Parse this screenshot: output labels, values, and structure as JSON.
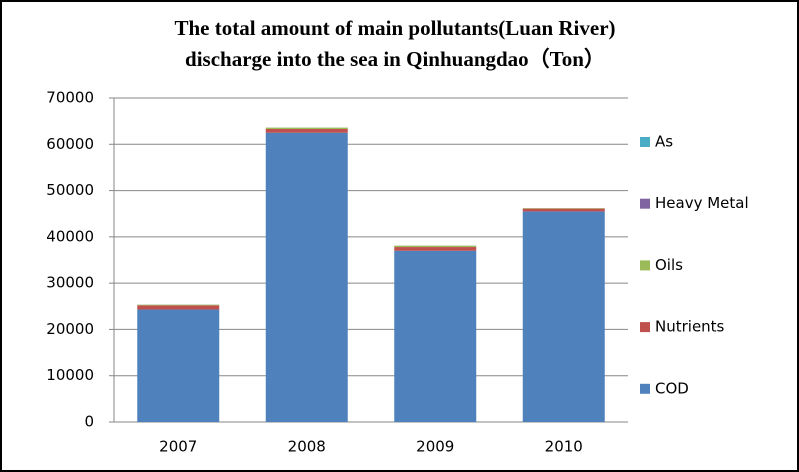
{
  "chart_data": {
    "type": "stacked_bar",
    "title": [
      "The total amount of main pollutants(Luan River)",
      "discharge into the sea in Qinhuangdao（Ton）"
    ],
    "categories": [
      "2007",
      "2008",
      "2009",
      "2010"
    ],
    "series": [
      {
        "name": "COD",
        "color": "#4f81bd",
        "values": [
          24300,
          62500,
          37000,
          45500
        ]
      },
      {
        "name": "Nutrients",
        "color": "#c0504d",
        "values": [
          900,
          800,
          800,
          600
        ]
      },
      {
        "name": "Oils",
        "color": "#9bbb59",
        "values": [
          150,
          300,
          300,
          100
        ]
      },
      {
        "name": "Heavy Metal",
        "color": "#8064a2",
        "values": [
          10,
          10,
          10,
          10
        ]
      },
      {
        "name": "As",
        "color": "#4bacc6",
        "values": [
          5,
          5,
          5,
          5
        ]
      }
    ],
    "ylim": [
      0,
      70000
    ],
    "yticks": [
      0,
      10000,
      20000,
      30000,
      40000,
      50000,
      60000,
      70000
    ],
    "grid": true,
    "legend": "right"
  }
}
